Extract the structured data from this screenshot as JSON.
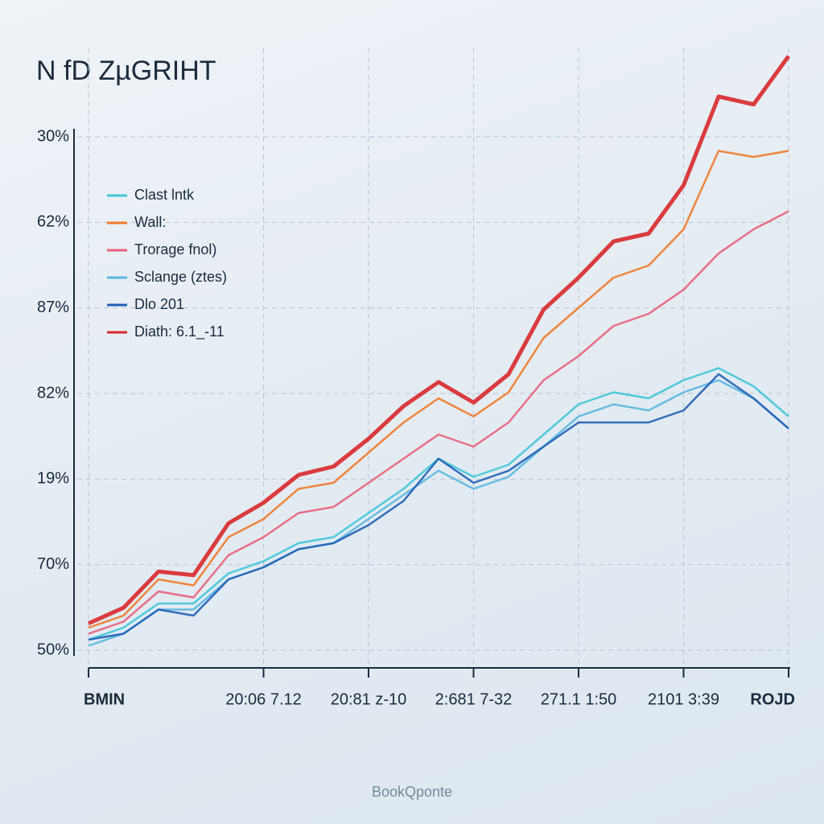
{
  "chart_data": {
    "type": "line",
    "title": "N fD ZµGRIHT",
    "footer": "BookQponte",
    "y_labels": [
      "30%",
      "62%",
      "87%",
      "82%",
      "19%",
      "70%",
      "50%"
    ],
    "x": [
      0,
      1,
      2,
      3,
      4,
      5,
      6,
      7,
      8,
      9,
      10,
      11,
      12,
      13,
      14,
      15,
      16,
      17,
      18,
      19,
      20
    ],
    "xlim": [
      0,
      20
    ],
    "xticks": [
      {
        "value": 0,
        "label": "BMIN"
      },
      {
        "value": 5,
        "label": "20:06 7.12"
      },
      {
        "value": 8,
        "label": "20:81 z-10"
      },
      {
        "value": 11,
        "label": "2:681 7-32"
      },
      {
        "value": 14,
        "label": "271.1 1:50"
      },
      {
        "value": 17,
        "label": "2101 3:39"
      },
      {
        "value": 20,
        "label": "ROJD"
      }
    ],
    "ylim": [
      0,
      100
    ],
    "grid": true,
    "series": [
      {
        "name": "Clast lntk",
        "color": "#3fc6d8",
        "values": [
          2,
          4,
          8,
          8,
          13,
          15,
          18,
          19,
          23,
          27,
          32,
          29,
          31,
          36,
          41,
          43,
          42,
          45,
          47,
          44,
          39
        ]
      },
      {
        "name": "Wall:",
        "color": "#f07a2a",
        "values": [
          4,
          6,
          12,
          11,
          19,
          22,
          27,
          28,
          33,
          38,
          42,
          39,
          43,
          52,
          57,
          62,
          64,
          70,
          83,
          82,
          83
        ]
      },
      {
        "name": "Trorage fnol)",
        "color": "#e8607a",
        "values": [
          3,
          5,
          10,
          9,
          16,
          19,
          23,
          24,
          28,
          32,
          36,
          34,
          38,
          45,
          49,
          54,
          56,
          60,
          66,
          70,
          73
        ]
      },
      {
        "name": "Sclange (ztes)",
        "color": "#5ab8e0",
        "values": [
          1,
          3,
          7,
          7,
          12,
          14,
          17,
          18,
          22,
          26,
          30,
          27,
          29,
          34,
          39,
          41,
          40,
          43,
          45,
          42,
          37
        ]
      },
      {
        "name": "Dlo 201",
        "color": "#1f5fb5",
        "values": [
          2,
          3,
          7,
          6,
          12,
          14,
          17,
          18,
          21,
          25,
          32,
          28,
          30,
          34,
          38,
          38,
          38,
          40,
          46,
          42,
          37
        ]
      },
      {
        "name": "Diath: 6.1_-11",
        "color": "#d8282a",
        "values": [
          4.7,
          7.3,
          13.3,
          12.7,
          21.3,
          24.7,
          29.3,
          30.7,
          35.3,
          40.7,
          44.7,
          41.3,
          46,
          56.7,
          62,
          68,
          69.3,
          77.3,
          92,
          90.7,
          98.7
        ]
      }
    ]
  }
}
